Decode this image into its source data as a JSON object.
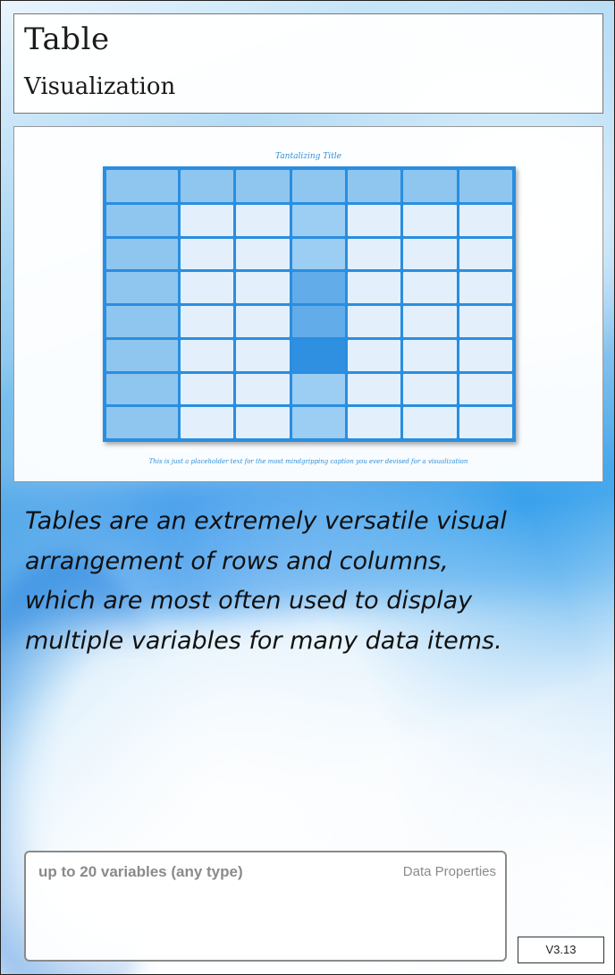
{
  "header": {
    "title": "Table",
    "subtitle": "Visualization"
  },
  "preview": {
    "title": "Tantalizing Title",
    "caption": "This is just a placeholder text for the most mindgripping caption you ever devised for a visualization",
    "table": {
      "columns": 7,
      "rows": 8,
      "colors": {
        "frame": "#2a8ee0",
        "header": "#8fc6ef",
        "first_column": "#8fc6ef",
        "body": "#e3f0fb",
        "highlight_light": "#9ccdf2",
        "highlight_mid": "#62acea",
        "highlight_dark": "#2f8fe0"
      },
      "highlight_column": 3,
      "highlight_shades": [
        "light",
        "light",
        "mid",
        "mid",
        "dark",
        "light",
        "light"
      ]
    }
  },
  "description": "Tables are an extremely versatile visual arrangement of rows and columns, which are most often used to display multiple variables for many data items.",
  "data_properties": {
    "variables": "up to 20 variables (any type)",
    "label": "Data Properties"
  },
  "version": "V3.13"
}
